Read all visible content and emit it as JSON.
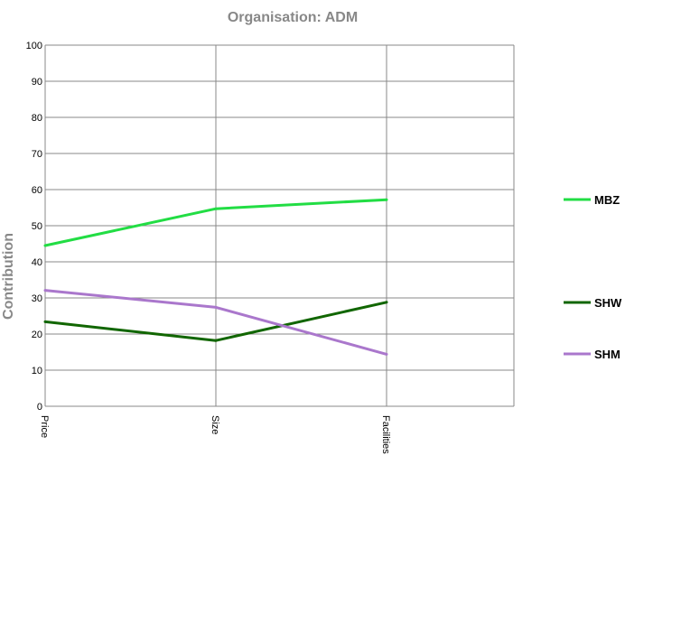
{
  "chart_data": {
    "type": "line",
    "title": "Organisation: ADM",
    "xlabel": "",
    "ylabel": "Contribution",
    "categories": [
      "Price",
      "Size",
      "Facilities"
    ],
    "ylim": [
      0,
      100
    ],
    "yticks": [
      0,
      10,
      20,
      30,
      40,
      50,
      60,
      70,
      80,
      90,
      100
    ],
    "grid": true,
    "legend_position": "right",
    "series": [
      {
        "name": "MBZ",
        "color": "#22dd44",
        "values": [
          44.5,
          54.7,
          57.2
        ]
      },
      {
        "name": "SHW",
        "color": "#116600",
        "values": [
          23.4,
          18.2,
          28.8
        ]
      },
      {
        "name": "SHM",
        "color": "#aa77cc",
        "values": [
          32.1,
          27.4,
          14.4
        ]
      }
    ]
  }
}
